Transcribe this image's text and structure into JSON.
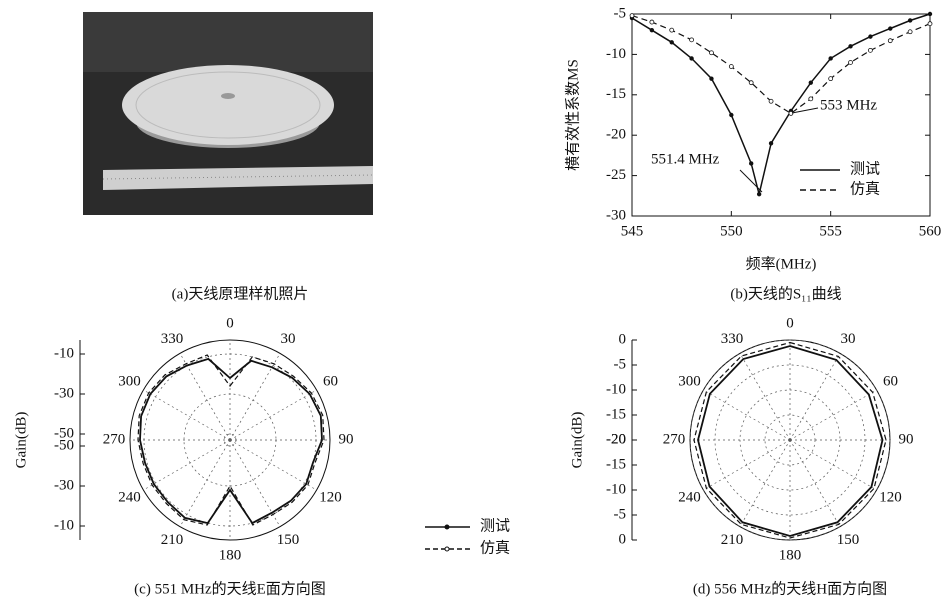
{
  "photo": {
    "caption": "(a)天线原理样机照片"
  },
  "chart_data": [
    {
      "type": "line",
      "caption": "(b)天线的S₁₁曲线",
      "xlabel": "频率(MHz)",
      "ylabel": "横有效性系数MS",
      "xlim": [
        545,
        560
      ],
      "xticks": [
        545,
        550,
        555,
        560
      ],
      "ylim": [
        -30,
        -5
      ],
      "yticks": [
        -5,
        -10,
        -15,
        -20,
        -25,
        -30
      ],
      "annotations": [
        "553 MHz",
        "551.4 MHz"
      ],
      "series": [
        {
          "name": "测试",
          "color": "#111111",
          "dash": false,
          "marker": "dot",
          "x": [
            545,
            546,
            547,
            548,
            549,
            550,
            551,
            551.4,
            552,
            553,
            554,
            555,
            556,
            557,
            558,
            559,
            560
          ],
          "values": [
            -5.5,
            -7,
            -8.5,
            -10.5,
            -13,
            -17.5,
            -23.5,
            -27.3,
            -21,
            -17,
            -13.5,
            -10.5,
            -9,
            -7.8,
            -6.8,
            -5.8,
            -5
          ]
        },
        {
          "name": "仿真",
          "color": "#111111",
          "dash": true,
          "marker": "circle",
          "x": [
            545,
            546,
            547,
            548,
            549,
            550,
            551,
            552,
            553,
            554,
            555,
            556,
            557,
            558,
            559,
            560
          ],
          "values": [
            -5.2,
            -6,
            -7,
            -8.2,
            -9.8,
            -11.5,
            -13.5,
            -15.8,
            -17.3,
            -15.5,
            -13,
            -11,
            -9.5,
            -8.3,
            -7.2,
            -6.2
          ]
        }
      ]
    },
    {
      "type": "polar",
      "caption": "(c) 551 MHz的天线E面方向图",
      "rlabel": "Gain(dB)",
      "rlim": [
        -53,
        -3
      ],
      "rticks": [
        -10,
        -30,
        -50
      ],
      "thetaticks": [
        0,
        30,
        60,
        90,
        120,
        150,
        180,
        210,
        240,
        270,
        300,
        330
      ],
      "theta": [
        0,
        15,
        30,
        45,
        60,
        75,
        90,
        105,
        120,
        135,
        150,
        165,
        180,
        195,
        210,
        225,
        240,
        255,
        270,
        285,
        300,
        315,
        330,
        345
      ],
      "series": [
        {
          "name": "测试",
          "color": "#111111",
          "dash": false,
          "values": [
            -22,
            -12,
            -11,
            -9,
            -7,
            -6,
            -7,
            -10,
            -9,
            -10,
            -11,
            -10,
            -28,
            -10,
            -8,
            -9,
            -9,
            -9,
            -8,
            -7,
            -7,
            -8,
            -10,
            -11
          ]
        },
        {
          "name": "仿真",
          "color": "#111111",
          "dash": true,
          "values": [
            -26,
            -10,
            -9,
            -8,
            -6,
            -5,
            -6,
            -9,
            -8,
            -9,
            -10,
            -9,
            -30,
            -9,
            -7,
            -8,
            -8,
            -8,
            -7,
            -6,
            -6,
            -7,
            -9,
            -9
          ]
        }
      ]
    },
    {
      "type": "polar",
      "caption": "(d) 556 MHz的天线H面方向图",
      "rlabel": "Gain(dB)",
      "rlim": [
        -20,
        0
      ],
      "rticks": [
        0,
        -5,
        -10,
        -15,
        -20
      ],
      "thetaticks": [
        0,
        30,
        60,
        90,
        120,
        150,
        180,
        210,
        240,
        270,
        300,
        330
      ],
      "theta": [
        0,
        30,
        60,
        90,
        120,
        150,
        180,
        210,
        240,
        270,
        300,
        330
      ],
      "series": [
        {
          "color": "#111111",
          "dash": false,
          "values": [
            -1.2,
            -1.5,
            -1.8,
            -1.5,
            -1.2,
            -1.0,
            -0.8,
            -1.0,
            -1.4,
            -1.6,
            -1.5,
            -1.3
          ]
        },
        {
          "color": "#111111",
          "dash": true,
          "values": [
            -0.5,
            -0.7,
            -0.9,
            -0.8,
            -0.6,
            -0.5,
            -0.4,
            -0.5,
            -0.7,
            -0.8,
            -0.7,
            -0.6
          ]
        }
      ]
    }
  ]
}
